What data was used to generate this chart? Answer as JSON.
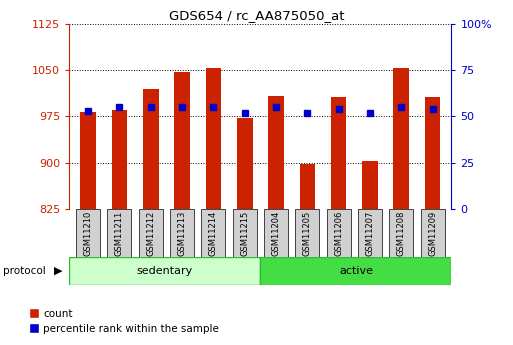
{
  "title": "GDS654 / rc_AA875050_at",
  "samples": [
    "GSM11210",
    "GSM11211",
    "GSM11212",
    "GSM11213",
    "GSM11214",
    "GSM11215",
    "GSM11204",
    "GSM11205",
    "GSM11206",
    "GSM11207",
    "GSM11208",
    "GSM11209"
  ],
  "counts": [
    983,
    985,
    1020,
    1048,
    1053,
    972,
    1008,
    898,
    1007,
    902,
    1053,
    1007
  ],
  "percentiles": [
    53,
    55,
    55,
    55,
    55,
    52,
    55,
    52,
    54,
    52,
    55,
    54
  ],
  "groups": [
    "sedentary",
    "sedentary",
    "sedentary",
    "sedentary",
    "sedentary",
    "sedentary",
    "active",
    "active",
    "active",
    "active",
    "active",
    "active"
  ],
  "ylim_left": [
    825,
    1125
  ],
  "ylim_right": [
    0,
    100
  ],
  "yticks_left": [
    825,
    900,
    975,
    1050,
    1125
  ],
  "yticks_right": [
    0,
    25,
    50,
    75,
    100
  ],
  "bar_color": "#cc2200",
  "dot_color": "#0000cc",
  "sedentary_color": "#ccffcc",
  "active_color": "#44dd44",
  "left_axis_color": "#cc2200",
  "right_axis_color": "#0000cc",
  "bar_width": 0.5,
  "base_value": 825,
  "n_sedentary": 6,
  "n_active": 6
}
